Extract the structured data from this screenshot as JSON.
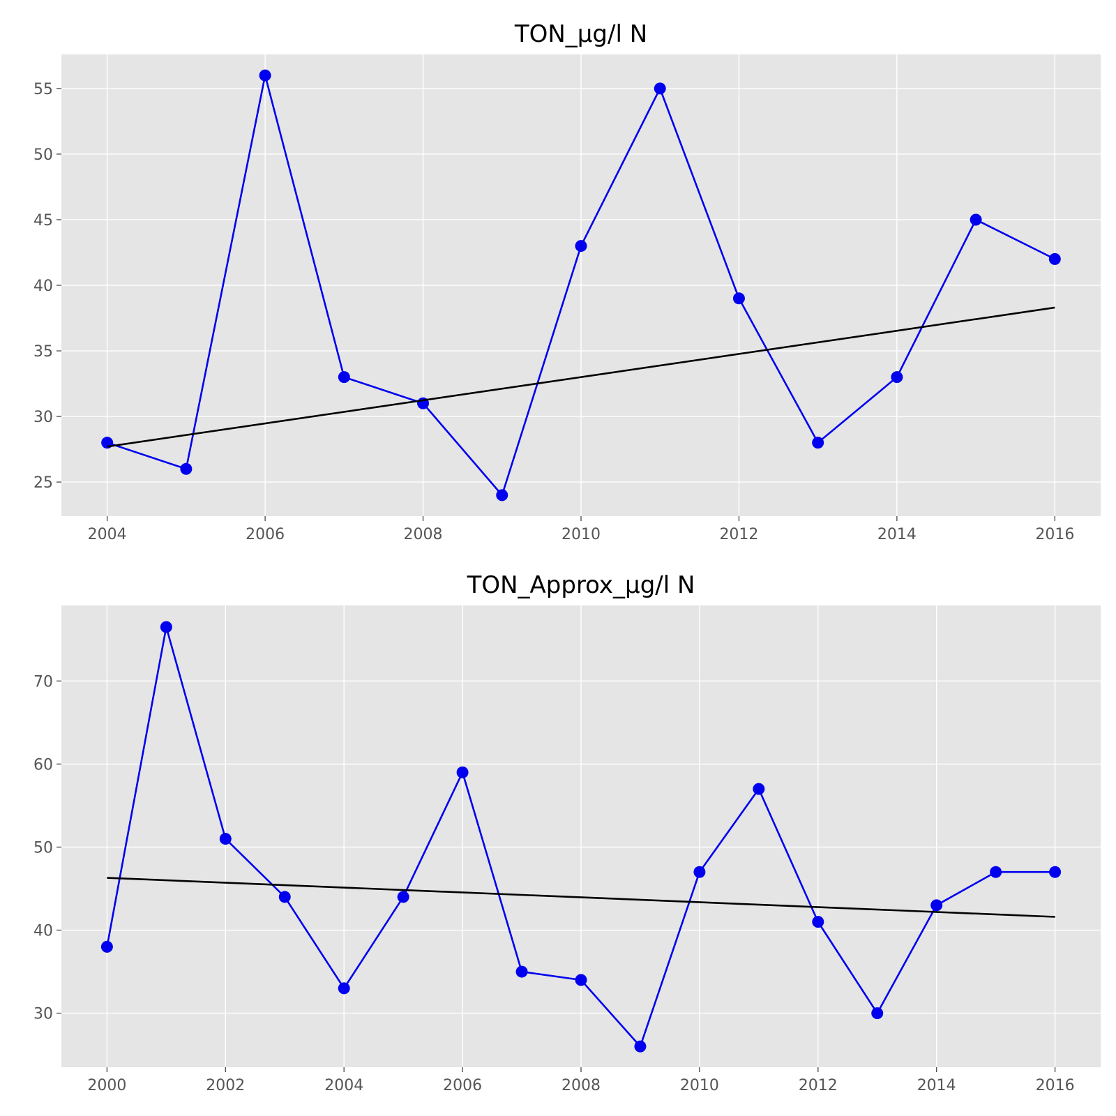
{
  "chart_data": [
    {
      "type": "line",
      "title": "TON_µg/l N",
      "xlabel": "",
      "ylabel": "",
      "xlim": [
        2003.42,
        2016.58
      ],
      "ylim": [
        22.4,
        57.6
      ],
      "xticks": [
        2004,
        2006,
        2008,
        2010,
        2012,
        2014,
        2016
      ],
      "yticks": [
        25,
        30,
        35,
        40,
        45,
        50,
        55
      ],
      "grid": true,
      "series": [
        {
          "kind": "line-markers",
          "color": "#0000ee",
          "x": [
            2004,
            2005,
            2006,
            2007,
            2008,
            2009,
            2010,
            2011,
            2012,
            2013,
            2014,
            2015,
            2016
          ],
          "y": [
            28,
            26,
            56,
            33,
            31,
            24,
            43,
            55,
            39,
            28,
            33,
            45,
            42
          ]
        },
        {
          "kind": "trend",
          "color": "#000000",
          "x": [
            2004,
            2016
          ],
          "y": [
            27.7,
            38.3
          ]
        }
      ]
    },
    {
      "type": "line",
      "title": "TON_Approx_µg/l N",
      "xlabel": "",
      "ylabel": "",
      "xlim": [
        1999.23,
        2016.77
      ],
      "ylim": [
        23.5,
        79.1
      ],
      "xticks": [
        2000,
        2002,
        2004,
        2006,
        2008,
        2010,
        2012,
        2014,
        2016
      ],
      "yticks": [
        30,
        40,
        50,
        60,
        70
      ],
      "grid": true,
      "series": [
        {
          "kind": "line-markers",
          "color": "#0000ee",
          "x": [
            2000,
            2001,
            2002,
            2003,
            2004,
            2005,
            2006,
            2007,
            2008,
            2009,
            2010,
            2011,
            2012,
            2013,
            2014,
            2015,
            2016
          ],
          "y": [
            38,
            76.5,
            51,
            44,
            33,
            44,
            59,
            35,
            34,
            26,
            47,
            57,
            41,
            30,
            43,
            47,
            47
          ]
        },
        {
          "kind": "trend",
          "color": "#000000",
          "x": [
            2000,
            2016
          ],
          "y": [
            46.3,
            41.6
          ]
        }
      ]
    }
  ]
}
